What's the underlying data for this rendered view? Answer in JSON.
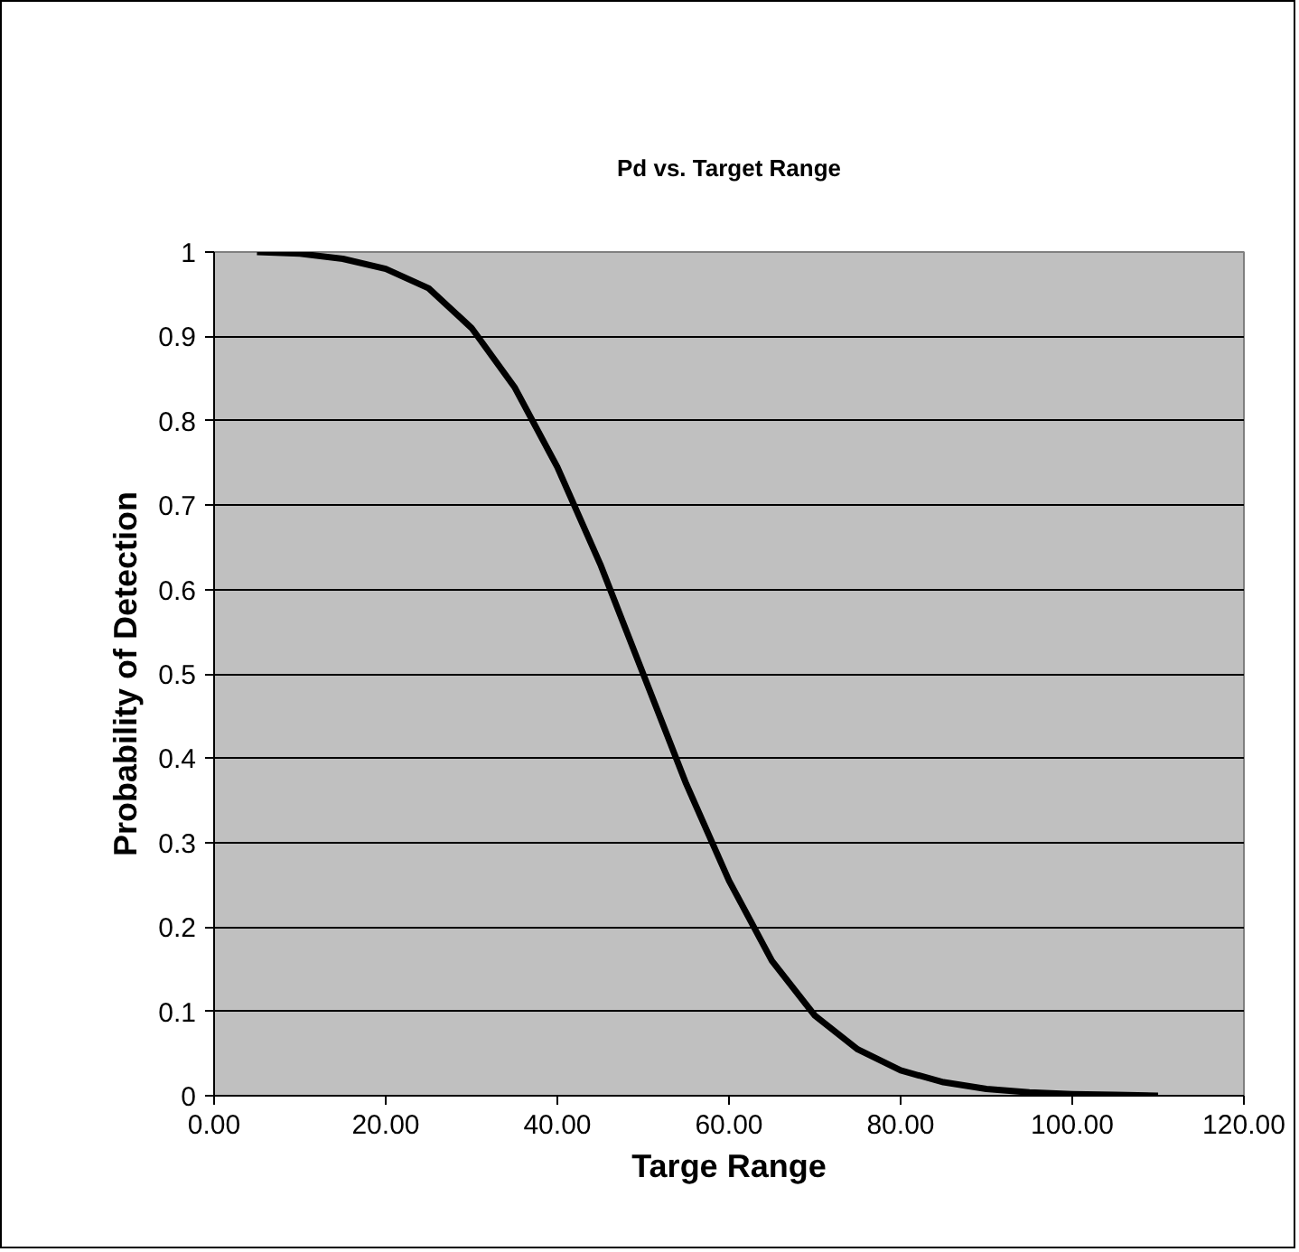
{
  "chart_data": {
    "type": "line",
    "title": "Pd vs. Target Range",
    "xlabel": "Targe Range",
    "ylabel": "Probability of Detection",
    "x": [
      5,
      10,
      15,
      20,
      25,
      30,
      35,
      40,
      45,
      50,
      55,
      60,
      65,
      70,
      75,
      80,
      85,
      90,
      95,
      100,
      105,
      110
    ],
    "series": [
      {
        "color": "#000000",
        "values": [
          1.0,
          0.998,
          0.992,
          0.98,
          0.957,
          0.91,
          0.84,
          0.745,
          0.63,
          0.5,
          0.37,
          0.255,
          0.16,
          0.095,
          0.055,
          0.03,
          0.016,
          0.008,
          0.004,
          0.002,
          0.001,
          0.0
        ]
      }
    ],
    "xlim": [
      0,
      120
    ],
    "xticks": [
      {
        "value": 0,
        "label": "0.00"
      },
      {
        "value": 20,
        "label": "20.00"
      },
      {
        "value": 40,
        "label": "40.00"
      },
      {
        "value": 60,
        "label": "60.00"
      },
      {
        "value": 80,
        "label": "80.00"
      },
      {
        "value": 100,
        "label": "100.00"
      },
      {
        "value": 120,
        "label": "120.00"
      }
    ],
    "ylim": [
      0,
      1
    ],
    "yticks": [
      0,
      0.1,
      0.2,
      0.3,
      0.4,
      0.5,
      0.6,
      0.7,
      0.8,
      0.9,
      1
    ],
    "grid": "y",
    "marker": "none",
    "line_style": "solid"
  }
}
